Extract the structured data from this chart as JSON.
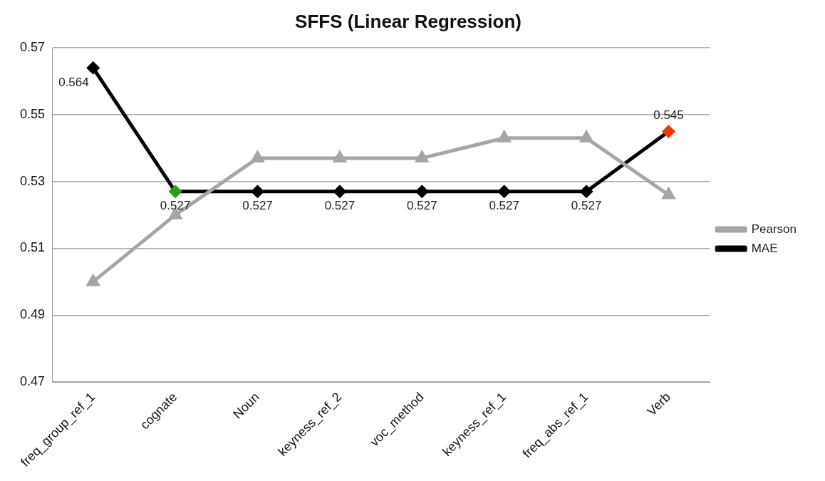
{
  "chart_data": {
    "type": "line",
    "title": "SFFS (Linear Regression)",
    "categories": [
      "freq_group_ref_1",
      "cognate",
      "Noun",
      "keyness_ref_2",
      "voc_method",
      "keyness_ref_1",
      "freq_abs_ref_1",
      "Verb"
    ],
    "series": [
      {
        "name": "Pearson",
        "color": "#a6a6a6",
        "marker": "triangle",
        "values": [
          0.5,
          0.52,
          0.537,
          0.537,
          0.537,
          0.543,
          0.543,
          0.526
        ]
      },
      {
        "name": "MAE",
        "color": "#000000",
        "marker": "diamond",
        "colors": [
          "#000000",
          "#2e9a1e",
          "#000000",
          "#000000",
          "#000000",
          "#000000",
          "#000000",
          "#ff3300"
        ],
        "values": [
          0.564,
          0.527,
          0.527,
          0.527,
          0.527,
          0.527,
          0.527,
          0.545
        ],
        "value_labels": [
          "0.564",
          "0.527",
          "0.527",
          "0.527",
          "0.527",
          "0.527",
          "0.527",
          "0.545"
        ]
      }
    ],
    "ylim": [
      0.47,
      0.57
    ],
    "yticks": [
      0.47,
      0.49,
      0.51,
      0.53,
      0.55,
      0.57
    ],
    "grid": "y",
    "legend": "right",
    "line_style": "solid"
  }
}
